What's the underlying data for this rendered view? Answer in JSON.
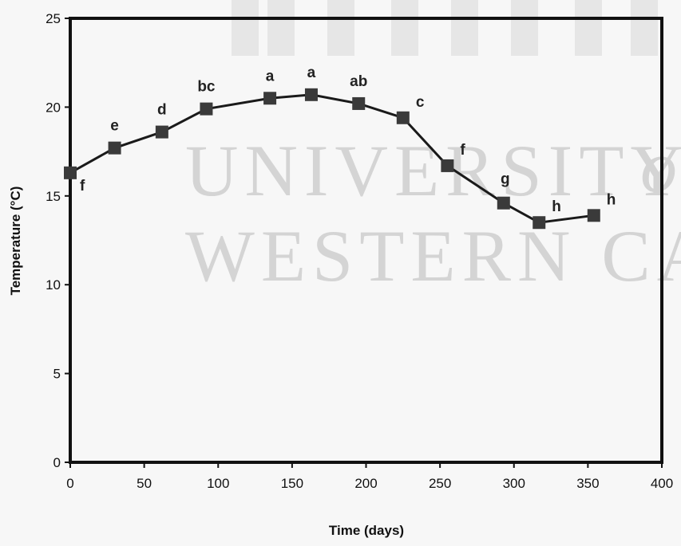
{
  "watermark": {
    "line1": "UNIVERSITY",
    "of": "of",
    "line2": "WESTERN CA"
  },
  "chart_data": {
    "type": "line",
    "title": "",
    "xlabel": "Time (days)",
    "ylabel": "Temperature (°C)",
    "xlim": [
      0,
      400
    ],
    "ylim": [
      0,
      25
    ],
    "xticks": [
      0,
      50,
      100,
      150,
      200,
      250,
      300,
      350,
      400
    ],
    "yticks": [
      0,
      5,
      10,
      15,
      20,
      25
    ],
    "grid": false,
    "legend": "none",
    "marker": "square",
    "series": [
      {
        "points": [
          {
            "x": 0,
            "y": 16.3,
            "label": "f"
          },
          {
            "x": 30,
            "y": 17.7,
            "label": "e"
          },
          {
            "x": 62,
            "y": 18.6,
            "label": "d"
          },
          {
            "x": 92,
            "y": 19.9,
            "label": "bc"
          },
          {
            "x": 135,
            "y": 20.5,
            "label": "a"
          },
          {
            "x": 163,
            "y": 20.7,
            "label": "a"
          },
          {
            "x": 195,
            "y": 20.2,
            "label": "ab"
          },
          {
            "x": 225,
            "y": 19.4,
            "label": "c"
          },
          {
            "x": 255,
            "y": 16.7,
            "label": "f"
          },
          {
            "x": 293,
            "y": 14.6,
            "label": "g"
          },
          {
            "x": 317,
            "y": 13.5,
            "label": "h"
          },
          {
            "x": 354,
            "y": 13.9,
            "label": "h"
          }
        ]
      }
    ]
  }
}
